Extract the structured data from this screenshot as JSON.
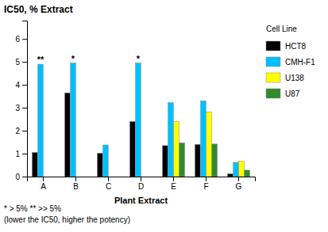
{
  "chart_data": {
    "type": "bar",
    "title": "IC50, % Extract",
    "xlabel": "Plant Extract",
    "categories": [
      "A",
      "B",
      "C",
      "D",
      "E",
      "F",
      "G"
    ],
    "series": [
      {
        "name": "HCT8",
        "color": "#000000",
        "values": [
          1.05,
          3.65,
          1.02,
          2.4,
          1.35,
          1.4,
          0.12
        ]
      },
      {
        "name": "CMH-F1",
        "color": "#00bfff",
        "values": [
          4.9,
          4.95,
          1.38,
          4.95,
          3.22,
          3.3,
          0.62
        ]
      },
      {
        "name": "U138",
        "color": "#ffff00",
        "values": [
          0.0,
          0.0,
          0.0,
          0.0,
          2.4,
          2.82,
          0.68
        ]
      },
      {
        "name": "U87",
        "color": "#2e8b2e",
        "values": [
          0.0,
          0.0,
          0.0,
          0.0,
          1.47,
          1.42,
          0.28
        ]
      }
    ],
    "annotations": [
      {
        "text": "**",
        "category": "A",
        "series": "CMH-F1"
      },
      {
        "text": "*",
        "category": "B",
        "series": "CMH-F1"
      },
      {
        "text": "*",
        "category": "D",
        "series": "CMH-F1"
      }
    ],
    "ylim": [
      0,
      6.8
    ],
    "yticks": [
      0,
      1,
      2,
      3,
      4,
      5,
      6
    ],
    "legend": "right",
    "legend_title": "Cell Line",
    "footnotes": [
      "* > 5%  ** >> 5%",
      "(lower the IC50, higher the potency)"
    ],
    "grid": false
  }
}
